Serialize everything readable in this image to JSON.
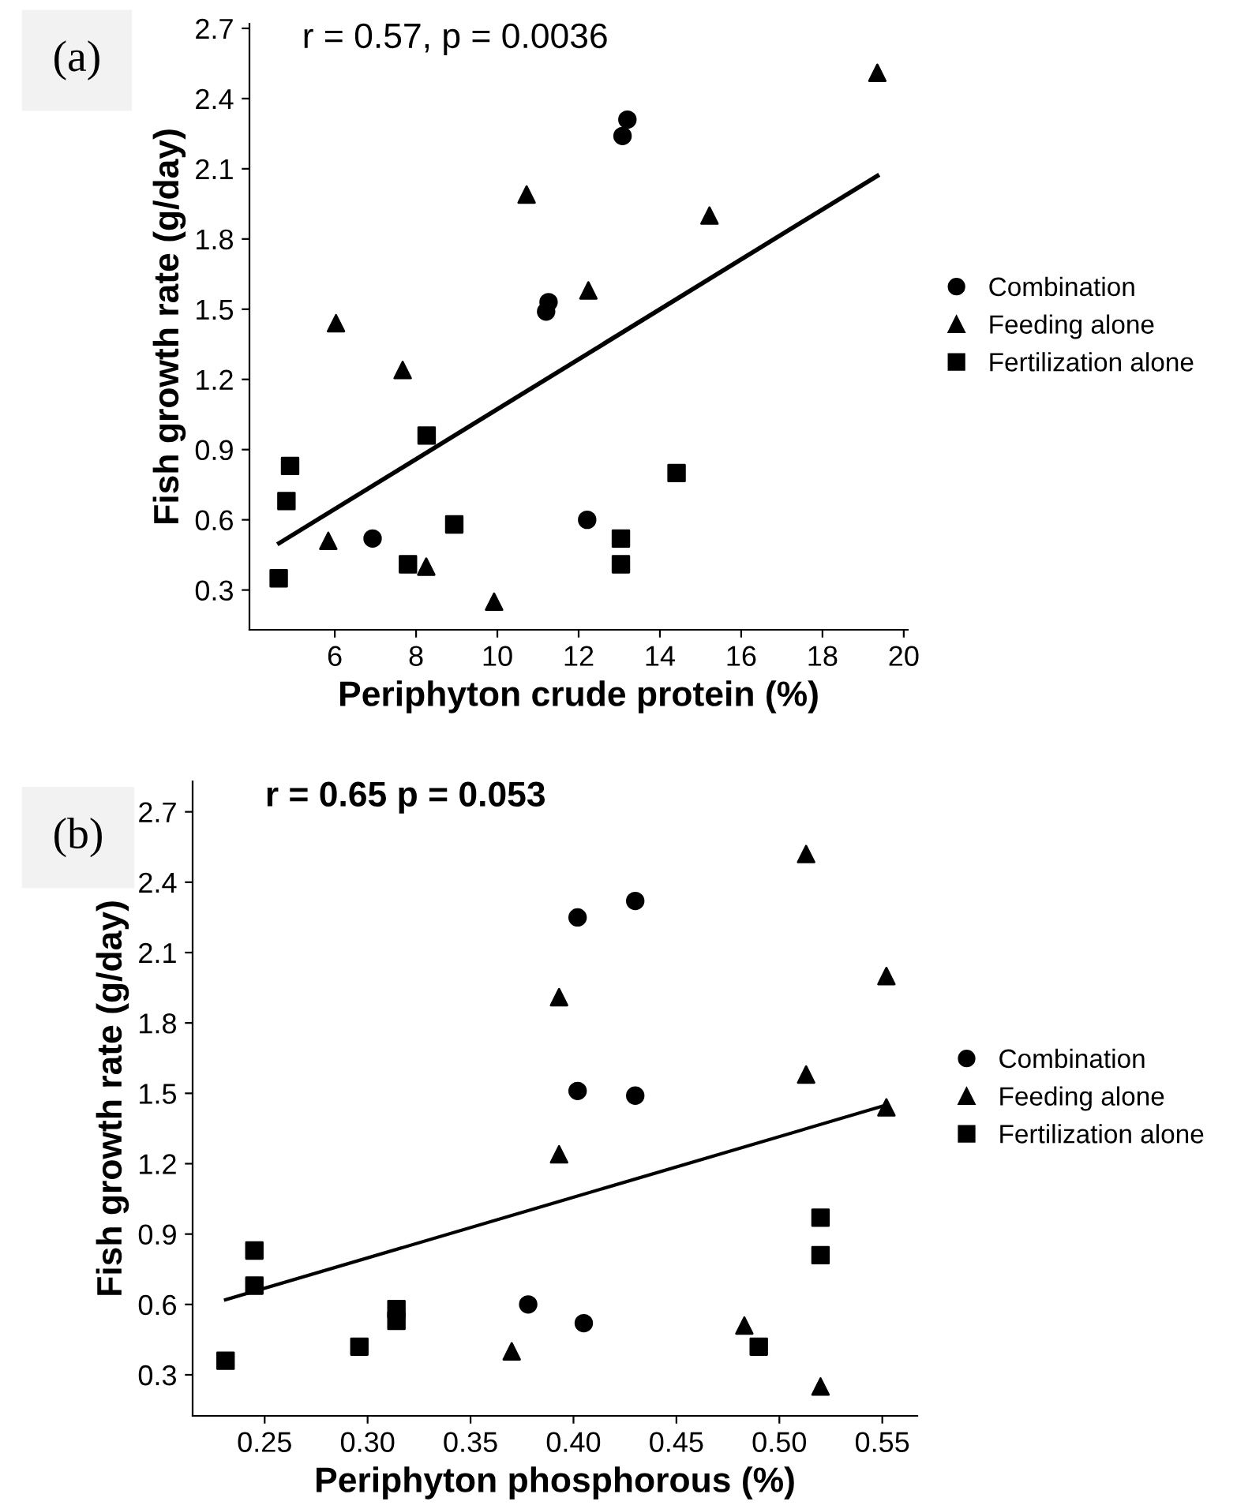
{
  "chart_data": [
    {
      "type": "scatter",
      "xlabel": "Periphyton crude protein (%)",
      "ylabel": "Fish growth rate (g/day)",
      "annotations": [
        "(a)",
        "r = 0.57, p = 0.0036"
      ],
      "xlim": [
        3.9,
        20.1
      ],
      "xticks": [
        6,
        8,
        10,
        12,
        14,
        16,
        18,
        20
      ],
      "ylim": [
        0.13,
        2.72
      ],
      "yticks": [
        0.3,
        0.6,
        0.9,
        1.2,
        1.5,
        1.8,
        2.1,
        2.4,
        2.7
      ],
      "grid": false,
      "legend": "right",
      "series": [
        {
          "name": "Combination",
          "color": "#000000",
          "marker": "circle",
          "x": [
            13.2,
            13.08,
            11.26,
            11.2,
            12.21,
            6.93
          ],
          "values": [
            2.31,
            2.24,
            1.53,
            1.49,
            0.6,
            0.52
          ]
        },
        {
          "name": "Feeding alone",
          "color": "#000000",
          "marker": "triangle",
          "x": [
            19.35,
            10.72,
            15.22,
            12.24,
            6.03,
            7.67,
            5.84,
            8.25,
            9.92
          ],
          "values": [
            2.51,
            1.99,
            1.9,
            1.58,
            1.44,
            1.24,
            0.51,
            0.4,
            0.25
          ]
        },
        {
          "name": "Fertilization alone",
          "color": "#000000",
          "marker": "square",
          "x": [
            4.9,
            4.81,
            4.62,
            8.26,
            8.94,
            7.8,
            13.04,
            13.04,
            14.41
          ],
          "values": [
            0.83,
            0.68,
            0.35,
            0.96,
            0.58,
            0.41,
            0.52,
            0.41,
            0.8
          ]
        },
        {
          "type": "line",
          "color": "#000000",
          "x": [
            4.63,
            19.35
          ],
          "values": [
            0.5,
            2.07
          ]
        }
      ]
    },
    {
      "type": "scatter",
      "xlabel": "Periphyton phosphorous (%)",
      "ylabel": "Fish growth rate (g/day)",
      "annotations": [
        "(b)",
        "r = 0.65 p = 0.053"
      ],
      "xlim": [
        0.215,
        0.567
      ],
      "xticks": [
        0.25,
        {
          "value": 0.3,
          "label": "0.30"
        },
        0.35,
        {
          "value": 0.4,
          "label": "0.40"
        },
        0.45,
        {
          "value": 0.5,
          "label": "0.50"
        },
        0.55
      ],
      "ylim": [
        0.125,
        2.83
      ],
      "yticks": [
        0.3,
        0.6,
        0.9,
        1.2,
        1.5,
        1.8,
        2.1,
        2.4,
        2.7
      ],
      "grid": false,
      "legend": "right",
      "series": [
        {
          "name": "Combination",
          "color": "#000000",
          "marker": "circle",
          "x": [
            0.402,
            0.43,
            0.402,
            0.43,
            0.378,
            0.405
          ],
          "values": [
            2.25,
            2.32,
            1.51,
            1.49,
            0.6,
            0.52
          ]
        },
        {
          "name": "Feeding alone",
          "color": "#000000",
          "marker": "triangle",
          "x": [
            0.513,
            0.552,
            0.393,
            0.513,
            0.552,
            0.393,
            0.483,
            0.37,
            0.52
          ],
          "values": [
            2.52,
            2.0,
            1.91,
            1.58,
            1.44,
            1.24,
            0.51,
            0.4,
            0.25
          ]
        },
        {
          "name": "Fertilization alone",
          "color": "#000000",
          "marker": "square",
          "x": [
            0.245,
            0.245,
            0.231,
            0.296,
            0.314,
            0.314,
            0.49,
            0.52,
            0.52
          ],
          "values": [
            0.83,
            0.68,
            0.36,
            0.42,
            0.58,
            0.53,
            0.42,
            0.97,
            0.81
          ]
        },
        {
          "type": "line",
          "color": "#000000",
          "x": [
            0.231,
            0.552
          ],
          "values": [
            0.62,
            1.45
          ]
        }
      ]
    }
  ]
}
